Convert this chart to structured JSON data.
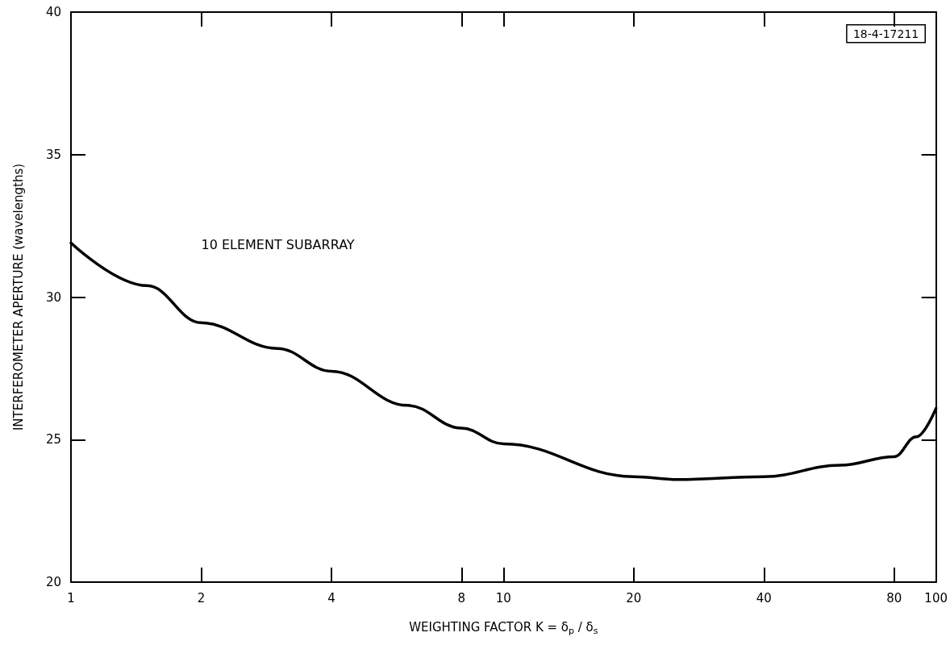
{
  "chart_data": {
    "type": "line",
    "xlabel": "WEIGHTING FACTOR K = δ$_{p}$ / δ$_{s}$",
    "ylabel": "INTERFEROMETER APERTURE (wavelengths)",
    "annotations": [
      "18-4-17211"
    ],
    "x": [
      1,
      1.5,
      2,
      3,
      4,
      6,
      8,
      10,
      20,
      25.3,
      40,
      60,
      80,
      90,
      100
    ],
    "series": [
      {
        "name": "10 ELEMENT SUBARRAY",
        "color": "#000000",
        "values": [
          31.9,
          30.4,
          29.1,
          28.2,
          27.4,
          26.2,
          25.4,
          24.85,
          23.7,
          23.6,
          23.7,
          24.1,
          24.4,
          25.1,
          26.1
        ]
      }
    ],
    "log": "x",
    "xlim": [
      1,
      100
    ],
    "xticks": [
      1,
      2,
      4,
      8,
      10,
      20,
      40,
      80,
      100
    ],
    "ylim": [
      20,
      40
    ],
    "yticks": [
      20,
      25,
      30,
      35,
      40
    ],
    "grid": false,
    "legend": false,
    "marker": "none",
    "line_style": "solid"
  }
}
